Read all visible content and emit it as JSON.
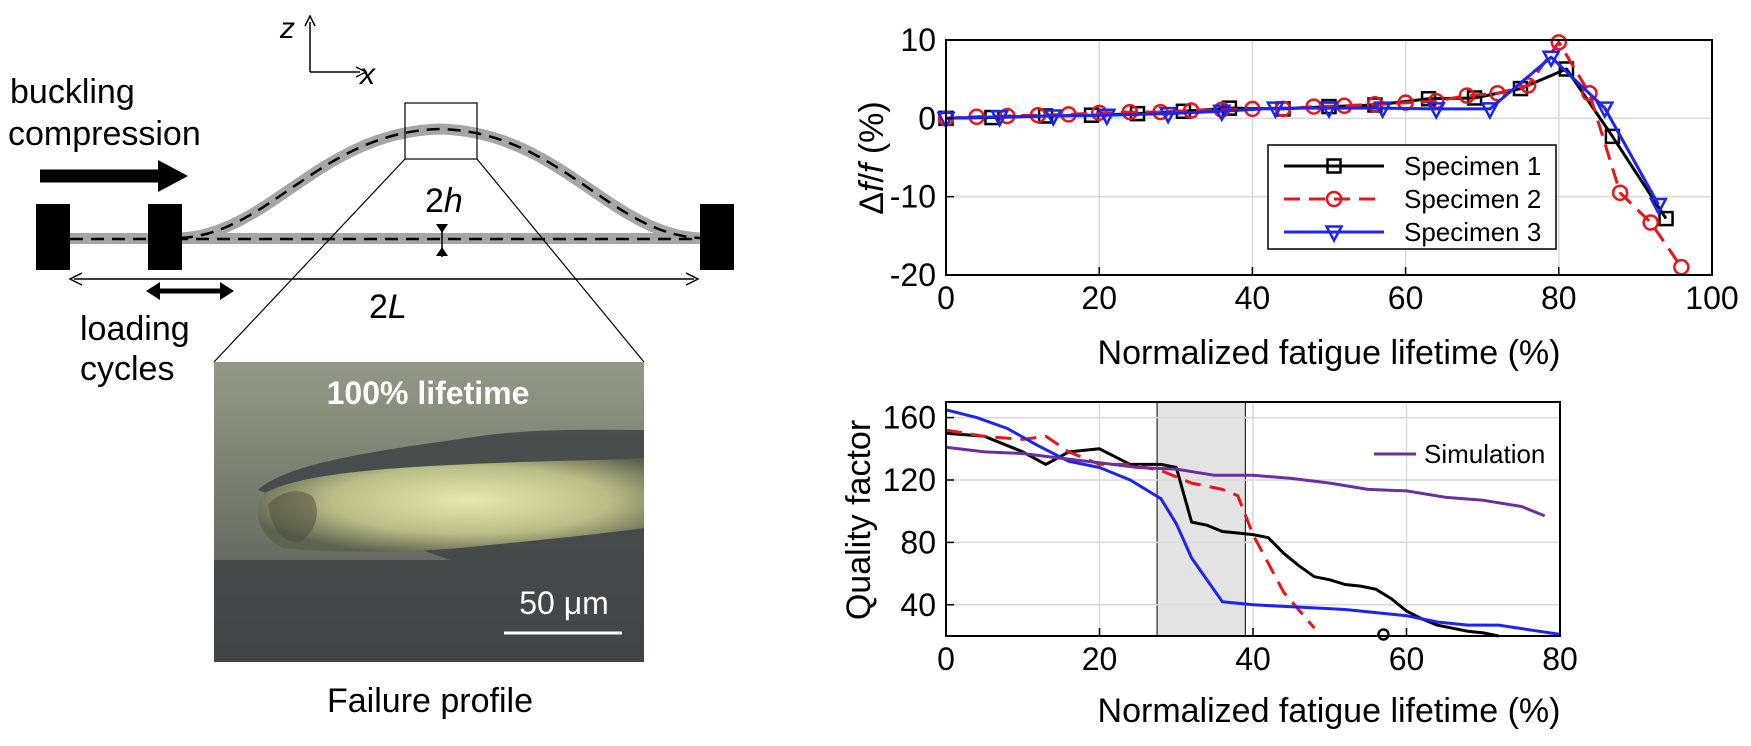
{
  "schematic": {
    "axis_z": "z",
    "axis_x": "x",
    "buckling_line1": "buckling",
    "buckling_line2": "compression",
    "loading_line1": "loading",
    "loading_line2": "cycles",
    "height_label_num": "2",
    "height_label_var": "h",
    "length_label_num": "2",
    "length_label_var": "L",
    "micrograph_overlay": "100% lifetime",
    "scalebar_label": "50 μm",
    "caption": "Failure profile"
  },
  "chart_data": [
    {
      "type": "line",
      "title": "",
      "xlabel": "Normalized fatigue lifetime (%)",
      "ylabel_symbol_1": "Δ",
      "ylabel_symbol_2": "f",
      "ylabel_symbol_3": "/",
      "ylabel_symbol_4": "f",
      "ylabel_unit": " (%)",
      "xlim": [
        0,
        100
      ],
      "ylim": [
        -20,
        10
      ],
      "xticks": [
        0,
        20,
        40,
        60,
        80,
        100
      ],
      "yticks": [
        10,
        0,
        -10,
        -20
      ],
      "grid": true,
      "legend_position": "lower-right",
      "series": [
        {
          "name": "Specimen 1",
          "color": "#000000",
          "marker": "square",
          "dash": "solid",
          "x": [
            0,
            6,
            13,
            19,
            25,
            31,
            37,
            44,
            50,
            56,
            63,
            69,
            75,
            81,
            87,
            94
          ],
          "y": [
            0,
            0.1,
            0.3,
            0.4,
            0.6,
            0.9,
            1.3,
            1.2,
            1.5,
            1.7,
            2.5,
            2.6,
            3.8,
            6.3,
            -2.3,
            -12.8
          ]
        },
        {
          "name": "Specimen 2",
          "color": "#e8151b",
          "marker": "circle",
          "dash": "dashed",
          "x": [
            0,
            4,
            8,
            12,
            16,
            20,
            24,
            28,
            32,
            36,
            40,
            44,
            48,
            52,
            56,
            60,
            64,
            68,
            72,
            76,
            80,
            84,
            88,
            92,
            96
          ],
          "y": [
            0,
            0.2,
            0.3,
            0.4,
            0.5,
            0.7,
            0.8,
            0.8,
            1.0,
            1.1,
            1.2,
            1.2,
            1.5,
            1.6,
            1.8,
            2.0,
            2.2,
            2.9,
            3.2,
            4.2,
            9.7,
            3.2,
            -9.5,
            -13.3,
            -19.0
          ]
        },
        {
          "name": "Specimen 3",
          "color": "#1b23f5",
          "marker": "triangle-down",
          "dash": "solid",
          "x": [
            0,
            7,
            14,
            21,
            29,
            36,
            43,
            50,
            57,
            64,
            71,
            79,
            86,
            93
          ],
          "y": [
            0,
            0.2,
            0.3,
            0.4,
            0.6,
            0.9,
            1.3,
            1.3,
            1.3,
            1.2,
            1.2,
            7.8,
            1.3,
            -11.0
          ]
        }
      ]
    },
    {
      "type": "line",
      "title": "",
      "xlabel": "Normalized fatigue lifetime (%)",
      "ylabel": "Quality factor",
      "xlim": [
        0,
        80
      ],
      "ylim": [
        20,
        170
      ],
      "xticks": [
        0,
        20,
        40,
        60,
        80
      ],
      "yticks": [
        160,
        120,
        80,
        40
      ],
      "grid": true,
      "legend_position": "top-right",
      "shaded_region": {
        "x_from": 27.5,
        "x_to": 39
      },
      "series": [
        {
          "name": "",
          "color": "#000000",
          "dash": "solid",
          "x": [
            0,
            5,
            10,
            13,
            16,
            20,
            24,
            28,
            30,
            32,
            34,
            36,
            38,
            40,
            42,
            44,
            46,
            48,
            50,
            52,
            54,
            56,
            58,
            60,
            62,
            64,
            66,
            68,
            70,
            72
          ],
          "y": [
            150,
            148,
            138,
            130,
            138,
            140,
            130,
            130,
            128,
            93,
            91,
            87,
            86,
            85,
            83,
            73,
            65,
            58,
            56,
            53,
            52,
            50,
            44,
            36,
            31,
            27,
            25,
            23,
            22,
            20
          ]
        },
        {
          "name": "",
          "color": "#e8151b",
          "dash": "dashed",
          "x": [
            0,
            5,
            10,
            13,
            16,
            20,
            24,
            28,
            32,
            36,
            38,
            40,
            44,
            48
          ],
          "y": [
            152,
            148,
            146,
            148,
            138,
            130,
            130,
            126,
            118,
            114,
            110,
            85,
            48,
            25
          ]
        },
        {
          "name": "",
          "color": "#1b23f5",
          "dash": "solid",
          "x": [
            0,
            4,
            8,
            12,
            16,
            20,
            24,
            28,
            30,
            32,
            36,
            40,
            44,
            48,
            52,
            56,
            60,
            64,
            68,
            72,
            76,
            80
          ],
          "y": [
            165,
            160,
            153,
            142,
            132,
            128,
            120,
            108,
            92,
            70,
            42,
            40,
            39,
            38,
            37,
            35,
            33,
            29,
            27,
            27,
            24,
            21
          ]
        },
        {
          "name": "Simulation",
          "color": "#6b2fa0",
          "dash": "solid",
          "x": [
            0,
            5,
            10,
            15,
            20,
            25,
            30,
            35,
            40,
            45,
            50,
            55,
            60,
            65,
            70,
            75,
            78
          ],
          "y": [
            141,
            138,
            137,
            134,
            131,
            128,
            127,
            123,
            123,
            121,
            118,
            114,
            113,
            109,
            107,
            103,
            97
          ]
        }
      ],
      "marker_point": {
        "x": 57,
        "y": 21
      }
    }
  ]
}
